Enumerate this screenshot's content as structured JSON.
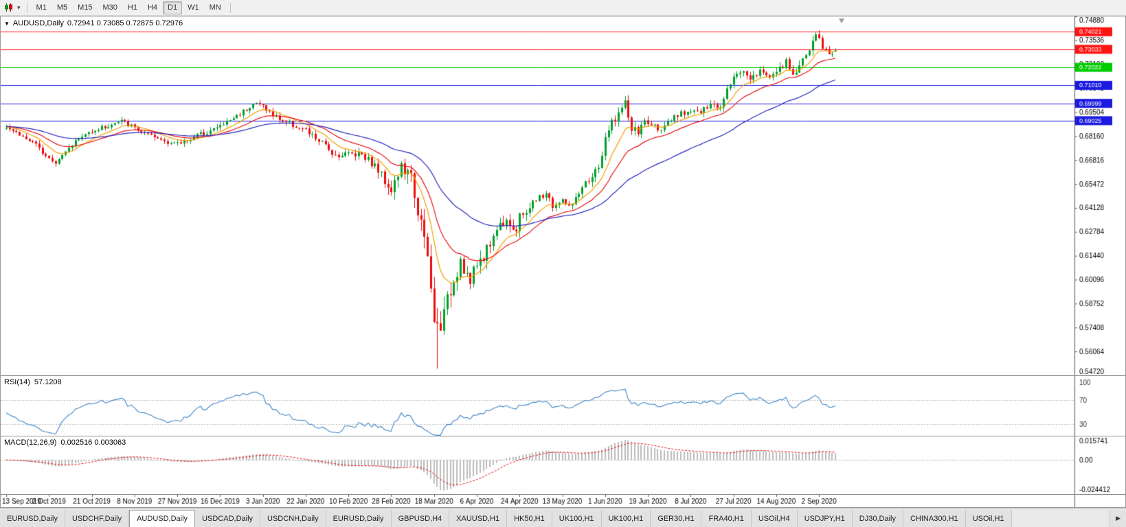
{
  "toolbar": {
    "chart_menu_caret": "▾",
    "timeframes": [
      "M1",
      "M5",
      "M15",
      "M30",
      "H1",
      "H4",
      "D1",
      "W1",
      "MN"
    ],
    "selected_timeframe": "D1"
  },
  "chart": {
    "collapse_icon": "▼",
    "title_symbol": "AUDUSD,Daily",
    "title_ohlc": "0.72941 0.73085 0.72875 0.72976"
  },
  "chart_data": {
    "type": "candlestick",
    "symbol": "AUDUSD",
    "period": "Daily",
    "last_bar_ohlc": {
      "open": 0.72941,
      "high": 0.73085,
      "low": 0.72875,
      "close": 0.72976
    },
    "y_range": [
      0.5472,
      0.7488
    ],
    "y_ticks": [
      "0.74880",
      "0.73536",
      "0.72192",
      "0.70848",
      "0.69504",
      "0.68160",
      "0.66816",
      "0.65472",
      "0.64128",
      "0.62784",
      "0.61440",
      "0.60096",
      "0.58752",
      "0.57408",
      "0.56064",
      "0.54720"
    ],
    "x_labels": [
      "13 Sep 2019",
      "2 Oct 2019",
      "21 Oct 2019",
      "8 Nov 2019",
      "27 Nov 2019",
      "16 Dec 2019",
      "3 Jan 2020",
      "22 Jan 2020",
      "10 Feb 2020",
      "28 Feb 2020",
      "18 Mar 2020",
      "6 Apr 2020",
      "24 Apr 2020",
      "13 May 2020",
      "1 Jun 2020",
      "19 Jun 2020",
      "8 Jul 2020",
      "27 Jul 2020",
      "14 Aug 2020",
      "2 Sep 2020"
    ],
    "bars_per_label": 13,
    "total_bars": 253,
    "close_anchors": [
      [
        0,
        0.6875
      ],
      [
        4,
        0.6825
      ],
      [
        8,
        0.6775
      ],
      [
        13,
        0.67
      ],
      [
        15,
        0.6672
      ],
      [
        19,
        0.676
      ],
      [
        26,
        0.685
      ],
      [
        31,
        0.6872
      ],
      [
        35,
        0.69
      ],
      [
        39,
        0.6862
      ],
      [
        44,
        0.681
      ],
      [
        48,
        0.6792
      ],
      [
        52,
        0.677
      ],
      [
        57,
        0.6812
      ],
      [
        61,
        0.684
      ],
      [
        65,
        0.6872
      ],
      [
        70,
        0.693
      ],
      [
        75,
        0.7
      ],
      [
        78,
        0.6988
      ],
      [
        81,
        0.693
      ],
      [
        85,
        0.6898
      ],
      [
        91,
        0.6845
      ],
      [
        96,
        0.6775
      ],
      [
        100,
        0.671
      ],
      [
        104,
        0.6718
      ],
      [
        108,
        0.6722
      ],
      [
        112,
        0.6648
      ],
      [
        117,
        0.652
      ],
      [
        120,
        0.6638
      ],
      [
        123,
        0.6578
      ],
      [
        126,
        0.632
      ],
      [
        128,
        0.612
      ],
      [
        130,
        0.5772
      ],
      [
        131,
        0.5745
      ],
      [
        133,
        0.5802
      ],
      [
        135,
        0.5958
      ],
      [
        138,
        0.6128
      ],
      [
        141,
        0.599
      ],
      [
        143,
        0.6098
      ],
      [
        146,
        0.6178
      ],
      [
        149,
        0.6298
      ],
      [
        152,
        0.6358
      ],
      [
        155,
        0.6272
      ],
      [
        156,
        0.6358
      ],
      [
        160,
        0.6438
      ],
      [
        164,
        0.6498
      ],
      [
        166,
        0.6422
      ],
      [
        169,
        0.6448
      ],
      [
        172,
        0.6422
      ],
      [
        176,
        0.6548
      ],
      [
        180,
        0.6638
      ],
      [
        182,
        0.6788
      ],
      [
        184,
        0.6898
      ],
      [
        187,
        0.6968
      ],
      [
        188,
        0.6998
      ],
      [
        190,
        0.6852
      ],
      [
        192,
        0.684
      ],
      [
        194,
        0.6898
      ],
      [
        197,
        0.6868
      ],
      [
        200,
        0.6862
      ],
      [
        203,
        0.6918
      ],
      [
        206,
        0.6948
      ],
      [
        208,
        0.6968
      ],
      [
        211,
        0.6948
      ],
      [
        214,
        0.6988
      ],
      [
        217,
        0.6982
      ],
      [
        219,
        0.7098
      ],
      [
        221,
        0.7148
      ],
      [
        224,
        0.7188
      ],
      [
        226,
        0.7142
      ],
      [
        229,
        0.7178
      ],
      [
        231,
        0.7158
      ],
      [
        234,
        0.7172
      ],
      [
        237,
        0.7228
      ],
      [
        239,
        0.7162
      ],
      [
        242,
        0.7238
      ],
      [
        244,
        0.7308
      ],
      [
        246,
        0.7388
      ],
      [
        248,
        0.7318
      ],
      [
        250,
        0.7282
      ],
      [
        252,
        0.72976
      ]
    ],
    "volatility_anchors": [
      [
        0,
        0.0038
      ],
      [
        60,
        0.0035
      ],
      [
        90,
        0.004
      ],
      [
        110,
        0.0055
      ],
      [
        117,
        0.0085
      ],
      [
        124,
        0.011
      ],
      [
        130,
        0.015
      ],
      [
        134,
        0.014
      ],
      [
        140,
        0.0105
      ],
      [
        150,
        0.008
      ],
      [
        160,
        0.006
      ],
      [
        170,
        0.005
      ],
      [
        182,
        0.006
      ],
      [
        190,
        0.006
      ],
      [
        200,
        0.0045
      ],
      [
        215,
        0.0045
      ],
      [
        230,
        0.0045
      ],
      [
        245,
        0.0055
      ],
      [
        252,
        0.0045
      ]
    ],
    "spike": {
      "bar": 131,
      "low": 0.551
    },
    "horizontal_lines": [
      {
        "price": 0.74021,
        "label": "0.74021",
        "color": "#ff1414"
      },
      {
        "price": 0.73033,
        "label": "0.73033",
        "color": "#ff1414"
      },
      {
        "price": 0.72022,
        "label": "0.72022",
        "color": "#00cc00"
      },
      {
        "price": 0.7101,
        "label": "0.71010",
        "color": "#1a1ae0"
      },
      {
        "price": 0.69999,
        "label": "0.69999",
        "color": "#1a1ae0"
      },
      {
        "price": 0.69025,
        "label": "0.69025",
        "color": "#1a1ae0"
      }
    ],
    "moving_averages": [
      {
        "name": "ema-fast",
        "period": 10,
        "color": "#f0a000"
      },
      {
        "name": "ema-mid",
        "period": 21,
        "color": "#e81212"
      },
      {
        "name": "ema-slow",
        "period": 50,
        "color": "#2626c0"
      }
    ],
    "candle_up_color": "#00a02a",
    "candle_down_color": "#ee0c0c"
  },
  "rsi": {
    "title": "RSI(14)",
    "value": "57.1208",
    "period": 14,
    "line_color": "#3d85c8",
    "levels": [
      {
        "value": 100,
        "label": "100"
      },
      {
        "value": 70,
        "label": "70"
      },
      {
        "value": 30,
        "label": "30"
      }
    ]
  },
  "macd": {
    "title": "MACD(12,26,9)",
    "values": "0.002516 0.003063",
    "fast": 12,
    "slow": 26,
    "signal": 9,
    "histogram_color": "#ababab",
    "signal_color": "#e81212",
    "axis_top_label": "0.015741",
    "axis_zero_label": "0.00",
    "axis_bottom_label": "-0.024412"
  },
  "tabbar": {
    "tabs": [
      "EURUSD,Daily",
      "USDCHF,Daily",
      "AUDUSD,Daily",
      "USDCAD,Daily",
      "USDCNH,Daily",
      "EURUSD,Daily",
      "GBPUSD,H4",
      "XAUUSD,H1",
      "HK50,H1",
      "UK100,H1",
      "UK100,H1",
      "GER30,H1",
      "FRA40,H1",
      "USOil,H4",
      "USDJPY,H1",
      "DJ30,Daily",
      "CHINA300,H1",
      "USOil,H1"
    ],
    "active_index": 2,
    "scroll_right_icon": "▶"
  }
}
